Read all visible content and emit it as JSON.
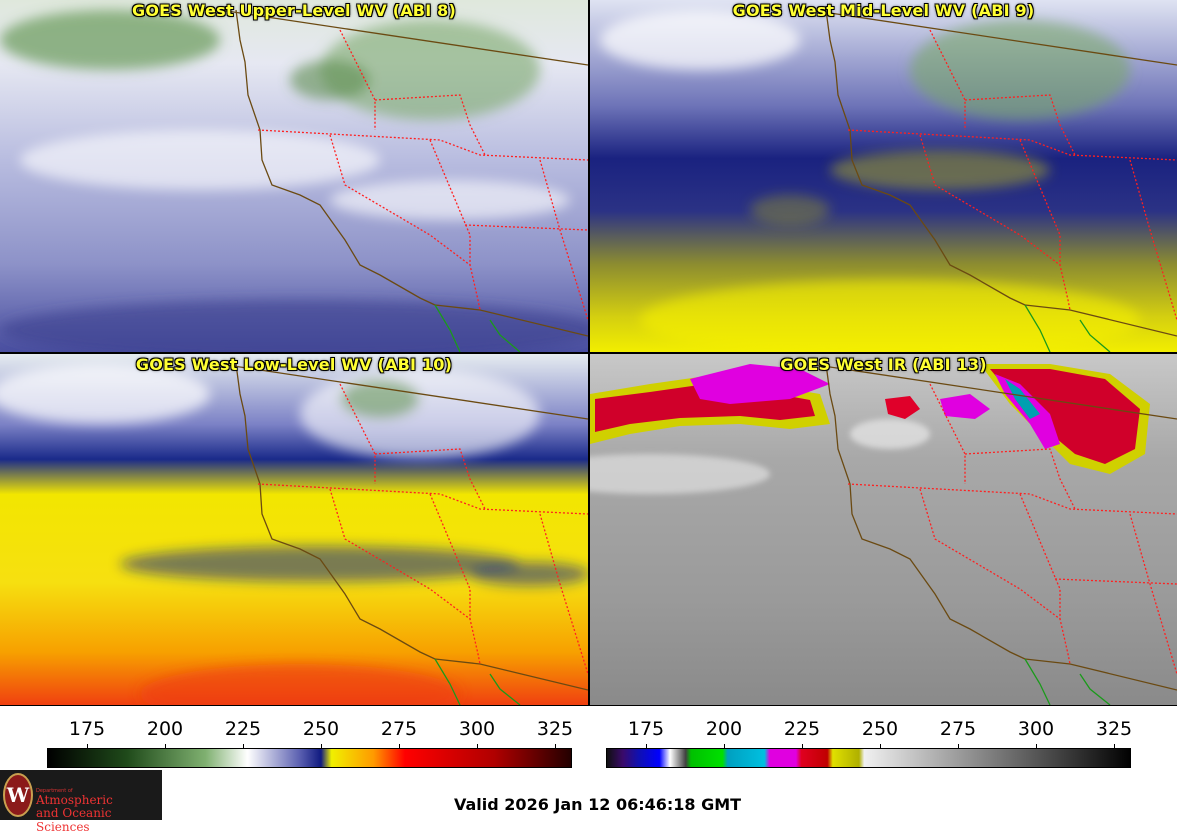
{
  "panels": [
    {
      "title": "GOES West Upper-Level WV (ABI 8)"
    },
    {
      "title": "GOES West Mid-Level WV (ABI 9)"
    },
    {
      "title": "GOES West Low-Level WV (ABI 10)"
    },
    {
      "title": "GOES West IR (ABI 13)"
    }
  ],
  "colorbars": {
    "wv": {
      "ticks": [
        "175",
        "200",
        "225",
        "250",
        "275",
        "300",
        "325"
      ]
    },
    "ir": {
      "ticks": [
        "175",
        "200",
        "225",
        "250",
        "275",
        "300",
        "325"
      ]
    }
  },
  "logo": {
    "line1": "Department of",
    "line2": "Atmospheric",
    "line3": "and Oceanic Sciences",
    "seal_letter": "W"
  },
  "valid_time": "Valid 2026 Jan 12 06:46:18 GMT",
  "colors": {
    "title_text": "#ffff33",
    "state_borders": "#ff2020",
    "coastline": "#6b4a12",
    "mexico_border": "#1a9a1a"
  }
}
